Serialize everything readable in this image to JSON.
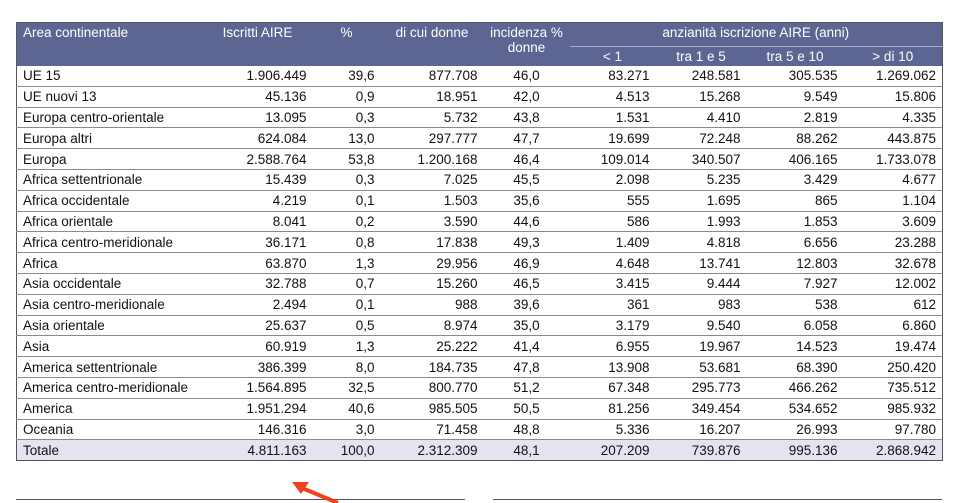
{
  "table": {
    "headers": {
      "area": "Area continentale",
      "iscritti": "Iscritti AIRE",
      "pct": "%",
      "donne": "di cui donne",
      "incidenza": "incidenza % donne",
      "anzianita_group": "anzianità iscrizione AIRE (anni)",
      "lt1": "< 1",
      "tra1e5": "tra 1 e 5",
      "tra5e10": "tra 5 e 10",
      "gt10": "> di 10"
    },
    "rows": [
      {
        "area": "UE 15",
        "iscritti": "1.906.449",
        "pct": "39,6",
        "donne": "877.708",
        "incidenza": "46,0",
        "lt1": "83.271",
        "tra1e5": "248.581",
        "tra5e10": "305.535",
        "gt10": "1.269.062"
      },
      {
        "area": "UE nuovi 13",
        "iscritti": "45.136",
        "pct": "0,9",
        "donne": "18.951",
        "incidenza": "42,0",
        "lt1": "4.513",
        "tra1e5": "15.268",
        "tra5e10": "9.549",
        "gt10": "15.806"
      },
      {
        "area": "Europa centro-orientale",
        "iscritti": "13.095",
        "pct": "0,3",
        "donne": "5.732",
        "incidenza": "43,8",
        "lt1": "1.531",
        "tra1e5": "4.410",
        "tra5e10": "2.819",
        "gt10": "4.335"
      },
      {
        "area": "Europa altri",
        "iscritti": "624.084",
        "pct": "13,0",
        "donne": "297.777",
        "incidenza": "47,7",
        "lt1": "19.699",
        "tra1e5": "72.248",
        "tra5e10": "88.262",
        "gt10": "443.875"
      },
      {
        "area": "Europa",
        "iscritti": "2.588.764",
        "pct": "53,8",
        "donne": "1.200.168",
        "incidenza": "46,4",
        "lt1": "109.014",
        "tra1e5": "340.507",
        "tra5e10": "406.165",
        "gt10": "1.733.078"
      },
      {
        "area": "Africa settentrionale",
        "iscritti": "15.439",
        "pct": "0,3",
        "donne": "7.025",
        "incidenza": "45,5",
        "lt1": "2.098",
        "tra1e5": "5.235",
        "tra5e10": "3.429",
        "gt10": "4.677"
      },
      {
        "area": "Africa occidentale",
        "iscritti": "4.219",
        "pct": "0,1",
        "donne": "1.503",
        "incidenza": "35,6",
        "lt1": "555",
        "tra1e5": "1.695",
        "tra5e10": "865",
        "gt10": "1.104"
      },
      {
        "area": "Africa orientale",
        "iscritti": "8.041",
        "pct": "0,2",
        "donne": "3.590",
        "incidenza": "44,6",
        "lt1": "586",
        "tra1e5": "1.993",
        "tra5e10": "1.853",
        "gt10": "3.609"
      },
      {
        "area": "Africa centro-meridionale",
        "iscritti": "36.171",
        "pct": "0,8",
        "donne": "17.838",
        "incidenza": "49,3",
        "lt1": "1.409",
        "tra1e5": "4.818",
        "tra5e10": "6.656",
        "gt10": "23.288"
      },
      {
        "area": "Africa",
        "iscritti": "63.870",
        "pct": "1,3",
        "donne": "29.956",
        "incidenza": "46,9",
        "lt1": "4.648",
        "tra1e5": "13.741",
        "tra5e10": "12.803",
        "gt10": "32.678"
      },
      {
        "area": "Asia occidentale",
        "iscritti": "32.788",
        "pct": "0,7",
        "donne": "15.260",
        "incidenza": "46,5",
        "lt1": "3.415",
        "tra1e5": "9.444",
        "tra5e10": "7.927",
        "gt10": "12.002"
      },
      {
        "area": "Asia centro-meridionale",
        "iscritti": "2.494",
        "pct": "0,1",
        "donne": "988",
        "incidenza": "39,6",
        "lt1": "361",
        "tra1e5": "983",
        "tra5e10": "538",
        "gt10": "612"
      },
      {
        "area": "Asia orientale",
        "iscritti": "25.637",
        "pct": "0,5",
        "donne": "8.974",
        "incidenza": "35,0",
        "lt1": "3.179",
        "tra1e5": "9.540",
        "tra5e10": "6.058",
        "gt10": "6.860"
      },
      {
        "area": "Asia",
        "iscritti": "60.919",
        "pct": "1,3",
        "donne": "25.222",
        "incidenza": "41,4",
        "lt1": "6.955",
        "tra1e5": "19.967",
        "tra5e10": "14.523",
        "gt10": "19.474"
      },
      {
        "area": "America settentrionale",
        "iscritti": "386.399",
        "pct": "8,0",
        "donne": "184.735",
        "incidenza": "47,8",
        "lt1": "13.908",
        "tra1e5": "53.681",
        "tra5e10": "68.390",
        "gt10": "250.420"
      },
      {
        "area": "America centro-meridionale",
        "iscritti": "1.564.895",
        "pct": "32,5",
        "donne": "800.770",
        "incidenza": "51,2",
        "lt1": "67.348",
        "tra1e5": "295.773",
        "tra5e10": "466.262",
        "gt10": "735.512"
      },
      {
        "area": "America",
        "iscritti": "1.951.294",
        "pct": "40,6",
        "donne": "985.505",
        "incidenza": "50,5",
        "lt1": "81.256",
        "tra1e5": "349.454",
        "tra5e10": "534.652",
        "gt10": "985.932"
      },
      {
        "area": "Oceania",
        "iscritti": "146.316",
        "pct": "3,0",
        "donne": "71.458",
        "incidenza": "48,8",
        "lt1": "5.336",
        "tra1e5": "16.207",
        "tra5e10": "26.993",
        "gt10": "97.780"
      }
    ],
    "total": {
      "area": "Totale",
      "iscritti": "4.811.163",
      "pct": "100,0",
      "donne": "2.312.309",
      "incidenza": "48,1",
      "lt1": "207.209",
      "tra1e5": "739.876",
      "tra5e10": "995.136",
      "gt10": "2.868.942"
    }
  },
  "colors": {
    "header_bg": "#5d6593",
    "total_bg": "#e3e4ef",
    "arrow": "#f0401c"
  },
  "annotation": {
    "icon": "red-arrow-icon"
  }
}
